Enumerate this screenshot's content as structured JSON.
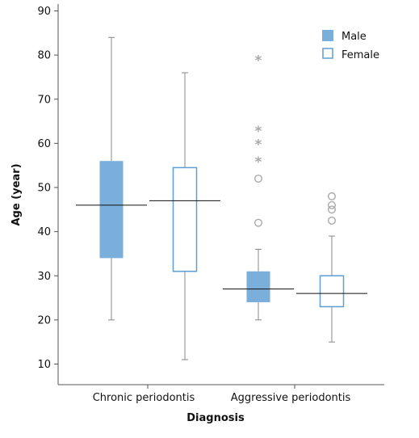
{
  "chart_data": {
    "type": "boxplot",
    "xlabel": "Diagnosis",
    "ylabel": "Age (year)",
    "ylim": [
      5,
      92
    ],
    "yticks": [
      10,
      20,
      30,
      40,
      50,
      60,
      70,
      80,
      90
    ],
    "ytick_labels": [
      "10",
      "20",
      "30",
      "40",
      "50",
      "60",
      "70",
      "80",
      "90"
    ],
    "categories": [
      "Chronic periodontis",
      "Aggressive periodontis"
    ],
    "legend": {
      "position": "top-right",
      "entries": [
        "Male",
        "Female"
      ]
    },
    "colors": {
      "male_fill": "#7aaedb",
      "male_stroke": "#7aaedb",
      "female_fill": "#ffffff",
      "female_stroke": "#5f9ed3",
      "whisker": "#888888",
      "median": "#111111",
      "outlier": "#aaaaaa"
    },
    "series": [
      {
        "name": "Male",
        "boxes": [
          {
            "category": "Chronic periodontis",
            "min": 20,
            "q1": 34,
            "median": 46,
            "q3": 56,
            "max": 84,
            "outliers": [],
            "extremes": []
          },
          {
            "category": "Aggressive periodontis",
            "min": 20,
            "q1": 24,
            "median": 27,
            "q3": 31,
            "max": 36,
            "outliers": [
              52,
              42
            ],
            "extremes": [
              79,
              63,
              60,
              56
            ]
          }
        ]
      },
      {
        "name": "Female",
        "boxes": [
          {
            "category": "Chronic periodontis",
            "min": 11,
            "q1": 31,
            "median": 47,
            "q3": 54.5,
            "max": 76,
            "outliers": [],
            "extremes": []
          },
          {
            "category": "Aggressive periodontis",
            "min": 15,
            "q1": 23,
            "median": 26,
            "q3": 30,
            "max": 39,
            "outliers": [
              48,
              46,
              45,
              42.5
            ],
            "extremes": []
          }
        ]
      }
    ]
  }
}
